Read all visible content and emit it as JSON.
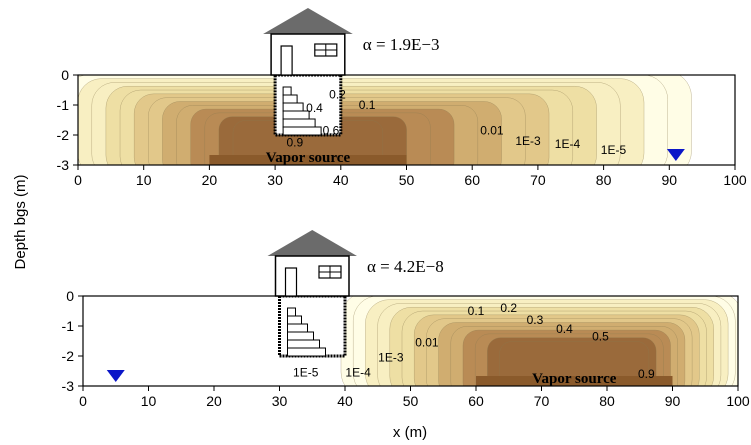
{
  "chart_data": [
    {
      "type": "heatmap",
      "panel": "top",
      "alpha_label": "α = 1.9E−3",
      "source_label": "Vapor source",
      "source_x": [
        20,
        50
      ],
      "building_x": [
        30,
        40
      ],
      "building_depth": -2,
      "water_table_x": 91,
      "xlim": [
        0,
        100
      ],
      "ylim": [
        -3,
        0
      ],
      "x_ticks": [
        "0",
        "10",
        "20",
        "30",
        "40",
        "50",
        "60",
        "70",
        "80",
        "90",
        "100"
      ],
      "y_ticks": [
        "0",
        "-1",
        "-2",
        "-3"
      ],
      "contour_levels": [
        "0.9",
        "0.6",
        "0.4",
        "0.2",
        "0.1",
        "0.01",
        "1E-3",
        "1E-4",
        "1E-5"
      ]
    },
    {
      "type": "heatmap",
      "panel": "bottom",
      "alpha_label": "α = 4.2E−8",
      "source_label": "Vapor source",
      "source_x": [
        60,
        90
      ],
      "building_x": [
        30,
        40
      ],
      "building_depth": -2,
      "water_table_x": 5,
      "xlim": [
        0,
        100
      ],
      "ylim": [
        -3,
        0
      ],
      "x_ticks": [
        "0",
        "10",
        "20",
        "30",
        "40",
        "50",
        "60",
        "70",
        "80",
        "90",
        "100"
      ],
      "y_ticks": [
        "0",
        "-1",
        "-2",
        "-3"
      ],
      "contour_levels": [
        "0.9",
        "0.5",
        "0.4",
        "0.3",
        "0.2",
        "0.1",
        "0.01",
        "1E-3",
        "1E-4",
        "1E-5"
      ]
    }
  ],
  "axes": {
    "xlabel": "x (m)",
    "ylabel": "Depth bgs (m)"
  },
  "colors": {
    "source": "#8a5a2b",
    "water_table": "#0b16c8",
    "roof": "#6b6b6b",
    "gradient": [
      "#fffde6",
      "#f8efc2",
      "#eedfa4",
      "#e2c88a",
      "#d0ad70",
      "#b98b55",
      "#9a6a3b"
    ]
  }
}
